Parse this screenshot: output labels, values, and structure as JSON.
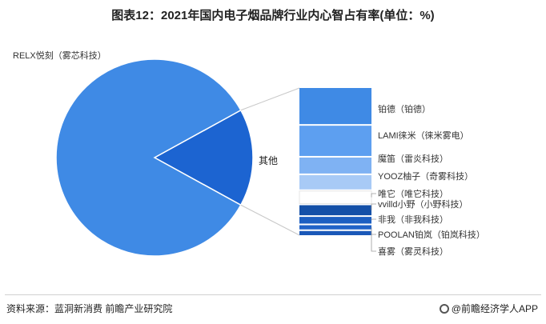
{
  "title": "图表12：2021年国内电子烟品牌行业内心智占有率(单位：%)",
  "chart_data": {
    "type": "bar-of-pie",
    "title": "图表12：2021年国内电子烟品牌行业内心智占有率(单位：%)",
    "pie": [
      {
        "label": "RELX悦刻（雾芯科技）",
        "value": 84,
        "color": "#3f8ae5"
      },
      {
        "label": "其他",
        "value": 16,
        "color": "#1c64d1"
      }
    ],
    "others_breakdown": [
      {
        "label": "铂德（铂德）",
        "value": 4.3,
        "color": "#3f8ae5"
      },
      {
        "label": "LAMI徕米（徕米雾电）",
        "value": 3.6,
        "color": "#5d9ff0"
      },
      {
        "label": "魔笛（雷炎科技）",
        "value": 1.9,
        "color": "#7fb2f3"
      },
      {
        "label": "YOOZ柚子（奇雾科技）",
        "value": 1.7,
        "color": "#a8caf6"
      },
      {
        "label": "唯它（唯它科技）",
        "value": 1.5,
        "color": "#ffffff"
      },
      {
        "label": "vvilld小野（小野科技）",
        "value": 1.2,
        "color": "#1450a8"
      },
      {
        "label": "非我（非我科技）",
        "value": 0.8,
        "color": "#1c5fc2"
      },
      {
        "label": "POOLAN铂岚（铂岚科技）",
        "value": 0.5,
        "color": "#2063c8"
      },
      {
        "label": "喜雾（雾灵科技）",
        "value": 0.5,
        "color": "#1a58b8"
      }
    ]
  },
  "footer": {
    "source": "资料来源：蓝洞新消费 前瞻产业研究院",
    "brand": "@前瞻经济学人APP"
  }
}
